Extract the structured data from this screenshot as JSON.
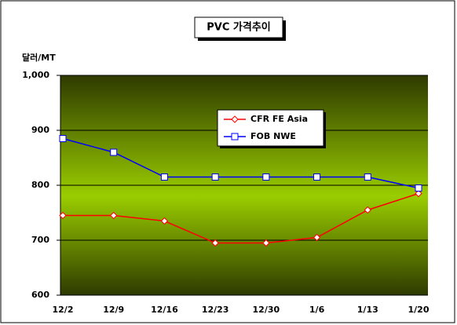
{
  "chart_data": {
    "type": "line",
    "title": "PVC 가격추이",
    "y_label": "달러/MT",
    "categories": [
      "12/2",
      "12/9",
      "12/16",
      "12/23",
      "12/30",
      "1/6",
      "1/13",
      "1/20"
    ],
    "series": [
      {
        "name": "CFR FE Asia",
        "color": "#ff0000",
        "marker": "diamond",
        "values": [
          745,
          745,
          735,
          695,
          695,
          705,
          755,
          785
        ]
      },
      {
        "name": "FOB NWE",
        "color": "#0000ff",
        "marker": "square",
        "values": [
          885,
          860,
          815,
          815,
          815,
          815,
          815,
          795
        ]
      }
    ],
    "ylim": [
      600,
      1000
    ],
    "yticks": [
      600,
      700,
      800,
      900,
      {
        "value": 1000,
        "label": "1,000"
      }
    ],
    "grid": true
  }
}
